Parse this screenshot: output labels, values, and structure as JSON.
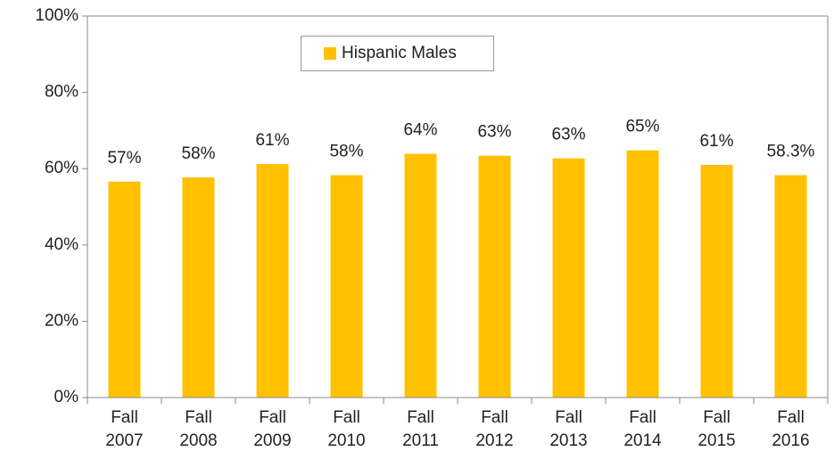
{
  "chart_data": {
    "type": "bar",
    "categories": [
      "Fall 2007",
      "Fall 2008",
      "Fall 2009",
      "Fall 2010",
      "Fall 2011",
      "Fall 2012",
      "Fall 2013",
      "Fall 2014",
      "Fall 2015",
      "Fall 2016"
    ],
    "series": [
      {
        "name": "Hispanic Males",
        "color": "#ffc000",
        "values": [
          56.6,
          57.7,
          61.2,
          58.3,
          63.9,
          63.4,
          62.7,
          64.8,
          61.0,
          58.3
        ],
        "value_labels": [
          "57%",
          "58%",
          "61%",
          "58%",
          "64%",
          "63%",
          "63%",
          "65%",
          "61%",
          "58.3%"
        ]
      }
    ],
    "ylim": [
      0,
      100
    ],
    "yticks": [
      {
        "value": 0,
        "label": "0%"
      },
      {
        "value": 20,
        "label": "20%"
      },
      {
        "value": 40,
        "label": "40%"
      },
      {
        "value": 60,
        "label": "60%"
      },
      {
        "value": 80,
        "label": "80%"
      },
      {
        "value": 100,
        "label": "100%"
      }
    ],
    "grid": false,
    "legend": "top"
  }
}
